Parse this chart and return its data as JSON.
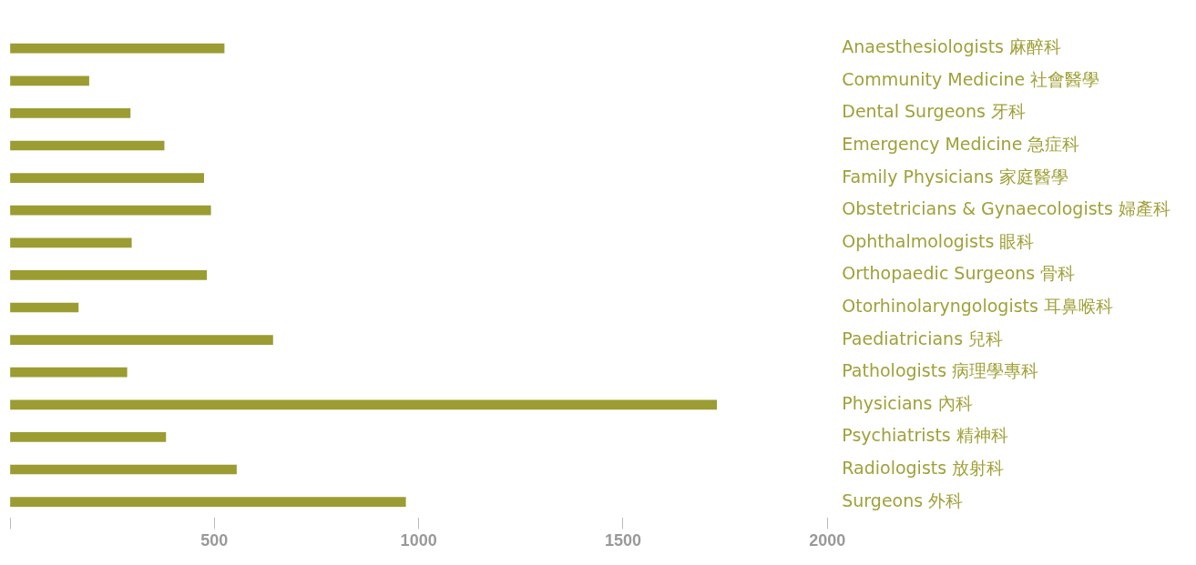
{
  "chart_data": {
    "type": "bar",
    "orientation": "horizontal",
    "categories": [
      "Anaesthesiologists 麻醉科",
      "Community Medicine 社會醫學",
      "Dental Surgeons 牙科",
      "Emergency Medicine 急症科",
      "Family Physicians 家庭醫學",
      "Obstetricians & Gynaecologists 婦產科",
      "Ophthalmologists 眼科",
      "Orthopaedic Surgeons 骨科",
      "Otorhinolaryngologists 耳鼻喉科",
      "Paediatricians 兒科",
      "Pathologists 病理學專科",
      "Physicians 內科",
      "Psychiatrists 精神科",
      "Radiologists 放射科",
      "Surgeons 外科"
    ],
    "values": [
      524,
      193,
      294,
      377,
      474,
      491,
      297,
      481,
      167,
      643,
      286,
      1729,
      381,
      554,
      968
    ],
    "color": "#9b9c32",
    "xlim": [
      0,
      2000
    ],
    "xticks": [
      {
        "value": 0,
        "label": null
      },
      500,
      1000,
      1500,
      2000
    ],
    "grid": false,
    "legend": false
  }
}
